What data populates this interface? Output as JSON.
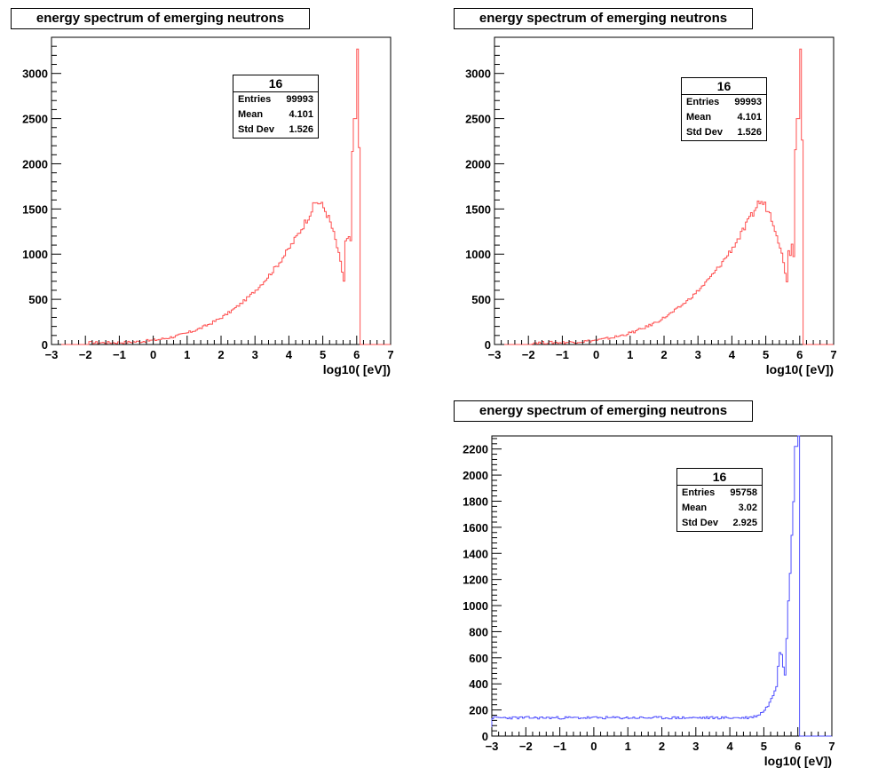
{
  "chart_data": [
    {
      "type": "histogram",
      "title": "energy spectrum of emerging neutrons",
      "xlabel": "log10( [eV])",
      "ylabel": "",
      "xlim": [
        -3,
        7
      ],
      "ylim": [
        0,
        3400
      ],
      "yticks": [
        0,
        500,
        1000,
        1500,
        2000,
        2500,
        3000
      ],
      "xticks": [
        -3,
        -2,
        -1,
        0,
        1,
        2,
        3,
        4,
        5,
        6,
        7
      ],
      "color": "#ff5050",
      "stats": {
        "name": "16",
        "entries": "99993",
        "mean": "4.101",
        "std_dev": "1.526"
      },
      "shape": {
        "start": -1.9,
        "end": 6.08,
        "peak_x": 4.8,
        "peak_y": 1580,
        "dip_x": 5.65,
        "dip_y": 650,
        "spikes": [
          [
            5.95,
            2500
          ],
          [
            6.0,
            3270
          ]
        ]
      },
      "grid": false,
      "legend": "top-right"
    },
    {
      "type": "histogram",
      "title": "energy spectrum of emerging neutrons",
      "xlabel": "log10( [eV])",
      "ylabel": "",
      "xlim": [
        -3,
        7
      ],
      "ylim": [
        0,
        3400
      ],
      "yticks": [
        0,
        500,
        1000,
        1500,
        2000,
        2500,
        3000
      ],
      "xticks": [
        -3,
        -2,
        -1,
        0,
        1,
        2,
        3,
        4,
        5,
        6,
        7
      ],
      "color": "#ff5050",
      "stats": {
        "name": "16",
        "entries": "99993",
        "mean": "4.101",
        "std_dev": "1.526"
      },
      "shape": {
        "start": -1.9,
        "end": 6.08,
        "peak_x": 4.8,
        "peak_y": 1580,
        "dip_x": 5.65,
        "dip_y": 650,
        "spikes": [
          [
            5.95,
            2500
          ],
          [
            6.0,
            3270
          ]
        ]
      },
      "grid": false,
      "legend": "top-right"
    },
    {
      "type": "histogram",
      "title": "energy spectrum of emerging neutrons",
      "xlabel": "log10( [eV])",
      "ylabel": "",
      "xlim": [
        -3,
        7
      ],
      "ylim": [
        0,
        2300
      ],
      "yticks": [
        0,
        200,
        400,
        600,
        800,
        1000,
        1200,
        1400,
        1600,
        1800,
        2000,
        2200
      ],
      "xticks": [
        -3,
        -2,
        -1,
        0,
        1,
        2,
        3,
        4,
        5,
        6,
        7
      ],
      "color": "#5050ff",
      "stats": {
        "name": "16",
        "entries": "95758",
        "mean": "3.02",
        "std_dev": "2.925"
      },
      "shape": {
        "start": -3,
        "end": 6.05,
        "flat": 140,
        "spikes": [
          [
            5.5,
            680
          ],
          [
            5.95,
            2220
          ]
        ]
      },
      "grid": false,
      "legend": "top-right"
    }
  ]
}
